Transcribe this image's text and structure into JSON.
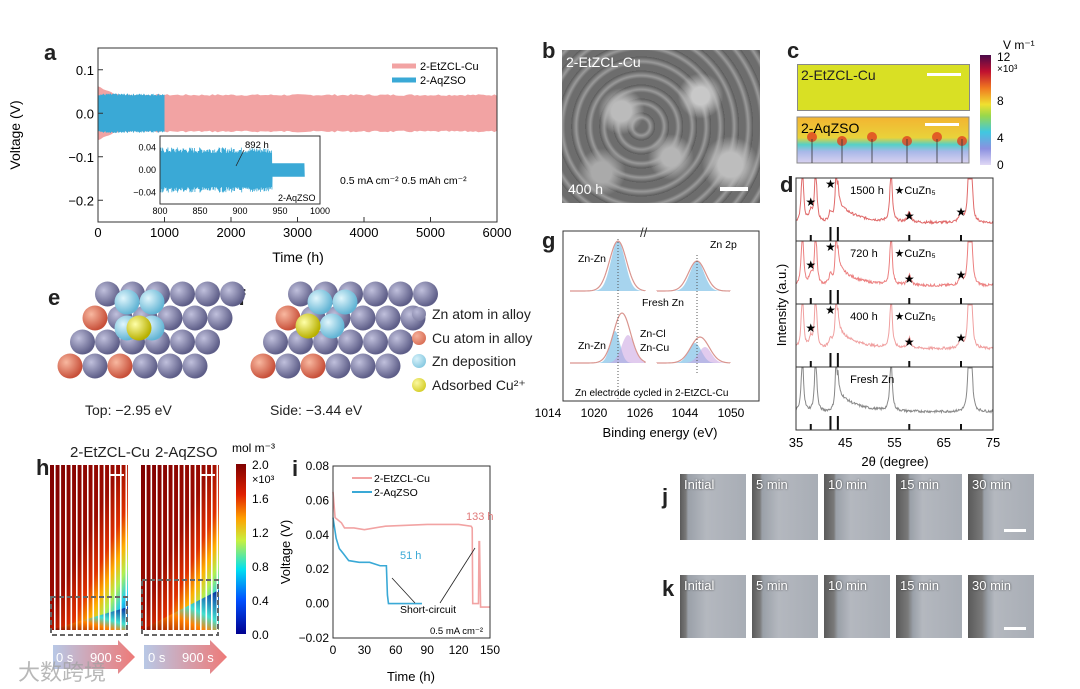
{
  "panels": {
    "a": "a",
    "b": "b",
    "c": "c",
    "d": "d",
    "e": "e",
    "f": "f",
    "g": "g",
    "h": "h",
    "i": "i",
    "j": "j",
    "k": "k"
  },
  "colors": {
    "etzcl": "#f2a3a3",
    "aqzso": "#3aa9d6",
    "zn_atom": "#7b7ba3",
    "cu_atom": "#e07a62",
    "zn_dep": "#8fd3ea",
    "cu_ion": "#e6e21e"
  },
  "panel_b": {
    "label": "2-EtZCL-Cu",
    "time": "400 h"
  },
  "panel_c": {
    "top_label": "2-EtZCL-Cu",
    "bottom_label": "2-AqZSO",
    "unit": "V m⁻¹",
    "scale_mult": "×10³",
    "ticks": [
      "12",
      "8",
      "4",
      "0"
    ]
  },
  "panel_e": {
    "caption": "Top: −2.95 eV"
  },
  "panel_f": {
    "caption": "Side: −3.44 eV"
  },
  "legend_ef": [
    "Zn atom in alloy",
    "Cu atom in alloy",
    "Zn deposition",
    "Adsorbed Cu²⁺"
  ],
  "panel_h": {
    "titles": [
      "2-EtZCL-Cu",
      "2-AqZSO"
    ],
    "unit": "mol m⁻³",
    "scale_mult": "×10³",
    "ticks": [
      "2.0",
      "1.6",
      "1.2",
      "0.8",
      "0.4",
      "0.0"
    ],
    "arrow_start": "0 s",
    "arrow_end": "900 s"
  },
  "panel_j": {
    "frames": [
      "Initial",
      "5 min",
      "10 min",
      "15 min",
      "30 min"
    ]
  },
  "panel_k": {
    "frames": [
      "Initial",
      "5 min",
      "10 min",
      "15 min",
      "30 min"
    ]
  },
  "watermark": "大数跨境",
  "chart_data": [
    {
      "id": "a",
      "type": "line",
      "title": "",
      "xlabel": "Time (h)",
      "ylabel": "Voltage (V)",
      "xlim": [
        0,
        6000
      ],
      "ylim": [
        -0.25,
        0.15
      ],
      "xticks": [
        "0",
        "1000",
        "2000",
        "3000",
        "4000",
        "5000",
        "6000"
      ],
      "yticks": [
        "0.1",
        "0.0",
        "−0.1",
        "−0.2"
      ],
      "series": [
        {
          "name": "2-EtZCL-Cu",
          "x_range": [
            0,
            6000
          ],
          "amplitude": 0.04,
          "initial_amplitude": 0.06
        },
        {
          "name": "2-AqZSO",
          "x_range": [
            0,
            1000
          ],
          "amplitude": 0.04
        }
      ],
      "annotation": "0.5 mA cm⁻²   0.5 mAh cm⁻²",
      "inset": {
        "xlim": [
          800,
          1000
        ],
        "ylim": [
          -0.06,
          0.06
        ],
        "xticks": [
          "800",
          "850",
          "900",
          "950",
          "1000"
        ],
        "yticks": [
          "0.04",
          "0.00",
          "−0.04"
        ],
        "legend": "2-AqZSO",
        "annotation": "892 h",
        "series": [
          {
            "name": "2-AqZSO",
            "x_range": [
              800,
              980
            ],
            "amplitude_before": 0.035,
            "amplitude_after": 0.012,
            "change_at": 940
          }
        ]
      },
      "legend": [
        "2-EtZCL-Cu",
        "2-AqZSO"
      ],
      "legend_position": "top-right"
    },
    {
      "id": "d",
      "type": "line",
      "xlabel": "2θ (degree)",
      "ylabel": "Intensity (a.u.)",
      "xlim": [
        35,
        75
      ],
      "xticks": [
        "35",
        "45",
        "55",
        "65",
        "75"
      ],
      "series": [
        {
          "name": "1500 h",
          "note": "★CuZn₅"
        },
        {
          "name": "720 h",
          "note": "★CuZn₅"
        },
        {
          "name": "400 h",
          "note": "★CuZn₅"
        },
        {
          "name": "Fresh Zn",
          "note": ""
        }
      ],
      "zn_peaks": [
        36.3,
        39.0,
        43.2,
        54.3,
        70.1,
        70.6
      ],
      "cuzn5_peaks": [
        38.0,
        42.0,
        58.0,
        68.5
      ],
      "reference_sticks": [
        38.0,
        42.0,
        43.5,
        58.0,
        68.5
      ]
    },
    {
      "id": "g",
      "type": "line",
      "xlabel": "Binding energy (eV)",
      "xticks": [
        "1014",
        "1020",
        "1026",
        "1044",
        "1050"
      ],
      "title": "Zn 2p",
      "groups": [
        {
          "name": "Fresh Zn",
          "peaks": [
            {
              "label": "Zn-Zn",
              "center": 1021.8
            },
            {
              "label": "",
              "center": 1044.9
            }
          ]
        },
        {
          "name": "Zn electrode cycled in 2-EtZCL-Cu",
          "peaks": [
            {
              "label": "Zn-Zn",
              "center": 1021.8
            },
            {
              "label": "Zn-Cl",
              "center": 1022.8
            },
            {
              "label": "Zn-Cu",
              "center": 1023.0
            }
          ]
        }
      ]
    },
    {
      "id": "i",
      "type": "line",
      "xlabel": "Time (h)",
      "ylabel": "Voltage (V)",
      "xlim": [
        0,
        150
      ],
      "ylim": [
        -0.02,
        0.08
      ],
      "xticks": [
        "0",
        "30",
        "60",
        "90",
        "120",
        "150"
      ],
      "yticks": [
        "0.08",
        "0.06",
        "0.04",
        "0.02",
        "0.00",
        "−0.02"
      ],
      "series": [
        {
          "name": "2-EtZCL-Cu",
          "x": [
            0,
            2,
            8,
            11,
            20,
            30,
            50,
            90,
            120,
            132,
            133,
            133.5,
            139,
            139.5,
            140,
            141,
            150
          ],
          "y": [
            0.065,
            0.05,
            0.047,
            0.044,
            0.044,
            0.043,
            0.045,
            0.046,
            0.046,
            0.045,
            0.044,
            0,
            0,
            0.036,
            0.036,
            -0.002,
            -0.002
          ]
        },
        {
          "name": "2-AqZSO",
          "x": [
            0,
            3,
            6,
            10,
            15,
            25,
            35,
            45,
            51,
            52,
            53,
            85
          ],
          "y": [
            0.05,
            0.038,
            0.032,
            0.029,
            0.025,
            0.024,
            0.024,
            0.022,
            0.022,
            0.005,
            0,
            0
          ]
        }
      ],
      "annotations": [
        "133 h",
        "51 h",
        "Short-circuit",
        "0.5 mA cm⁻²"
      ],
      "legend": [
        "2-EtZCL-Cu",
        "2-AqZSO"
      ],
      "legend_position": "top-left"
    }
  ]
}
